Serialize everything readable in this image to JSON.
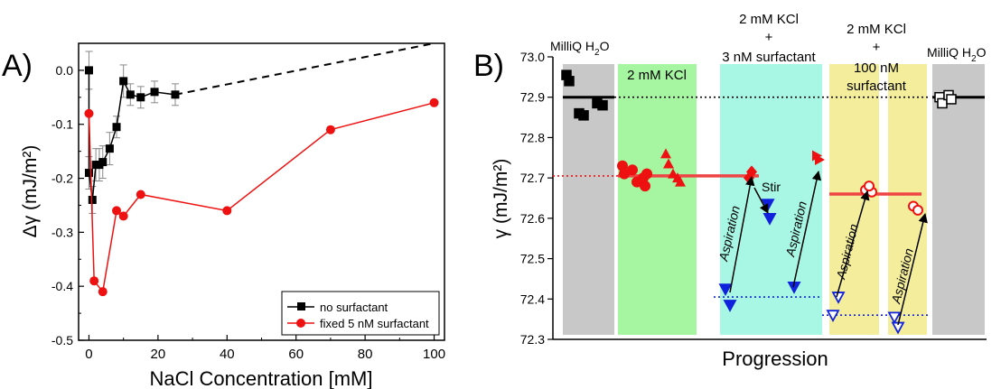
{
  "chart_data": [
    {
      "panel": "A)",
      "type": "line",
      "xlabel": "NaCl Concentration [mM]",
      "ylabel": "Δγ (mJ/m²)",
      "xlim": [
        -3,
        103
      ],
      "ylim": [
        -0.5,
        0.05
      ],
      "xticks": [
        "0",
        "20",
        "40",
        "60",
        "80",
        "100"
      ],
      "xtick_values": [
        0,
        20,
        40,
        60,
        80,
        100
      ],
      "yticks": [
        "-0.5",
        "-0.4",
        "-0.3",
        "-0.2",
        "-0.1",
        "0.0"
      ],
      "ytick_values": [
        -0.5,
        -0.4,
        -0.3,
        -0.2,
        -0.1,
        0.0
      ],
      "legend_position": "bottom-right",
      "series": [
        {
          "name": "no surfactant",
          "color": "#000000",
          "marker": "square",
          "x": [
            0,
            0,
            1,
            2,
            3,
            4,
            6,
            8,
            10,
            12,
            15,
            19,
            25
          ],
          "y": [
            0.0,
            -0.19,
            -0.24,
            -0.175,
            -0.175,
            -0.17,
            -0.145,
            -0.105,
            -0.02,
            -0.045,
            -0.05,
            -0.04,
            -0.045
          ],
          "err": [
            0.035,
            0.03,
            0.025,
            0.03,
            0.03,
            0.03,
            0.03,
            0.02,
            0.03,
            0.02,
            0.02,
            0.02,
            0.02
          ],
          "extrapolation_dashed_to": [
            100,
            0.05
          ]
        },
        {
          "name": "fixed 5 nM surfactant",
          "color": "#ee1111",
          "marker": "circle",
          "x": [
            0,
            1.5,
            4,
            8,
            10,
            15,
            40,
            70,
            100
          ],
          "y": [
            -0.08,
            -0.39,
            -0.41,
            -0.26,
            -0.27,
            -0.23,
            -0.26,
            -0.11,
            -0.06
          ]
        }
      ]
    },
    {
      "panel": "B)",
      "type": "scatter",
      "xlabel": "Progression",
      "ylabel": "γ (mJ/m²)",
      "ylim": [
        72.3,
        73.0
      ],
      "yticks": [
        "72.3",
        "72.4",
        "72.5",
        "72.6",
        "72.7",
        "72.8",
        "72.9",
        "73.0"
      ],
      "ytick_values": [
        72.3,
        72.4,
        72.5,
        72.6,
        72.7,
        72.8,
        72.9,
        73.0
      ],
      "phase_labels": {
        "milliq_left": "MilliQ H",
        "milliq_sub": "2",
        "milliq_o": "O",
        "kcl": "2 mM KCl",
        "kcl3_line1": "2 mM KCl",
        "kcl3_plus": "+",
        "kcl3_line2": "3 nM surfactant",
        "kcl100_line1": "2 mM KCl",
        "kcl100_plus": "+",
        "kcl100_line2": "100 nM",
        "kcl100_line3": "surfactant",
        "milliq_right": "MilliQ H"
      },
      "annotations": {
        "stir": "Stir",
        "aspiration": "Aspiration"
      },
      "reference_levels": {
        "milliq": 72.9,
        "kcl": 72.705,
        "kcl_3nM_after_aspiration": 72.405,
        "kcl_100nM": 72.66,
        "kcl_100nM_after_aspiration": 72.36
      },
      "phase_colors": {
        "gray": "#c8c8c8",
        "green": "#a6f5a0",
        "cyan": "#a8f7e4",
        "yellow": "#f4ee9c"
      },
      "points": {
        "milliq_left_black_squares": [
          72.955,
          72.94,
          72.86,
          72.855,
          72.885,
          72.88
        ],
        "kcl_red_circles": [
          72.73,
          72.71,
          72.72,
          72.69,
          72.7,
          72.68,
          72.71
        ],
        "kcl_red_triangles": [
          72.76,
          72.735,
          72.71,
          72.7,
          72.69
        ],
        "kcl3_red_diamond": [
          72.715,
          72.7
        ],
        "kcl3_blue_down_after_stir": [
          72.635,
          72.6
        ],
        "kcl3_blue_down_after_aspiration_1": [
          72.425,
          72.385
        ],
        "kcl3_blue_down_after_aspiration_2": [
          72.43
        ],
        "kcl3_red_triangle_right": [
          72.755,
          72.745
        ],
        "kcl100_red_open_circles": [
          72.67,
          72.665,
          72.68
        ],
        "kcl100_blue_open_down": [
          72.405,
          72.36
        ],
        "kcl100b_blue_open_down": [
          72.355,
          72.33
        ],
        "kcl100b_red_open_circles": [
          72.63,
          72.62
        ],
        "milliq_right_open_squares": [
          72.9,
          72.885,
          72.905,
          72.895
        ]
      }
    }
  ]
}
